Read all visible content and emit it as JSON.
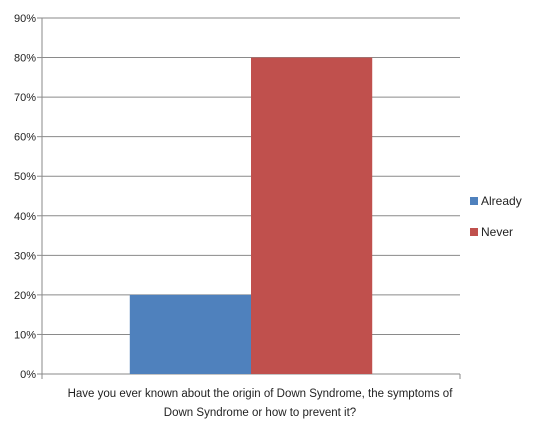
{
  "chart_data": {
    "type": "bar",
    "xlabel_lines": [
      "Have you ever known about the origin of Down Syndrome, the symptoms of",
      "Down Syndrome or how to prevent it?"
    ],
    "ylabel": "",
    "ylim": [
      0,
      90
    ],
    "y_ticks": [
      "0%",
      "10%",
      "20%",
      "30%",
      "40%",
      "50%",
      "60%",
      "70%",
      "80%",
      "90%"
    ],
    "grid": true,
    "legend_position": "right",
    "series": [
      {
        "name": "Already",
        "value": 20,
        "color": "#4f81bd"
      },
      {
        "name": "Never",
        "value": 80,
        "color": "#c0504d"
      }
    ]
  }
}
